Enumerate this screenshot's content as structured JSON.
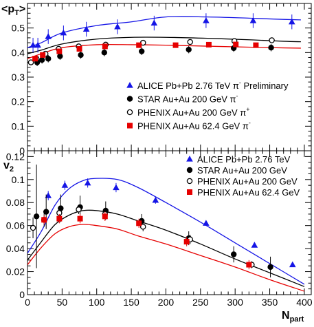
{
  "chart_data": [
    {
      "type": "scatter",
      "ylabel_main": "<p",
      "ylabel_sub": "T",
      "ylabel_tail": ">",
      "xlim": [
        0,
        410
      ],
      "ylim": [
        0,
        0.6
      ],
      "yticks": [
        0,
        0.1,
        0.2,
        0.3,
        0.4,
        0.5
      ],
      "ytick_labels": [
        "0",
        "0.1",
        "0.2",
        "0.3",
        "0.4",
        "0.5"
      ],
      "legend_position": "right",
      "series": [
        {
          "name_main": "ALICE Pb+Pb 2.76 TeV π",
          "name_sup": "-",
          "name_tail": " Preliminary",
          "color": "#1515e6",
          "marker": "triangle",
          "x": [
            8,
            15,
            30,
            52,
            85,
            130,
            183,
            258,
            326,
            382
          ],
          "y": [
            0.43,
            0.43,
            0.465,
            0.48,
            0.495,
            0.505,
            0.52,
            0.53,
            0.53,
            0.525
          ],
          "yerr": [
            0.03,
            0.03,
            0.03,
            0.03,
            0.03,
            0.03,
            0.03,
            0.03,
            0.03,
            0.03
          ]
        },
        {
          "name_main": "STAR Au+Au 200 GeV π",
          "name_sup": "-",
          "name_tail": "",
          "color": "#000000",
          "marker": "filled_circle",
          "x": [
            14,
            21,
            30,
            47,
            77,
            111,
            165,
            233,
            298,
            352
          ],
          "y": [
            0.36,
            0.37,
            0.375,
            0.385,
            0.39,
            0.4,
            0.405,
            0.412,
            0.418,
            0.42
          ],
          "yerr": [
            0.015,
            0.015,
            0.015,
            0.015,
            0.015,
            0.015,
            0.015,
            0.015,
            0.015,
            0.015
          ]
        },
        {
          "name_main": "PHENIX Au+Au 200 GeV π",
          "name_sup": "+",
          "name_tail": "",
          "color": "#000000",
          "marker": "open_circle",
          "x": [
            5,
            13,
            26,
            45,
            74,
            113,
            167,
            235,
            299,
            353
          ],
          "y": [
            0.36,
            0.375,
            0.395,
            0.415,
            0.425,
            0.432,
            0.44,
            0.443,
            0.447,
            0.45
          ],
          "yerr": [
            0.01,
            0.01,
            0.01,
            0.01,
            0.01,
            0.01,
            0.01,
            0.01,
            0.01,
            0.01
          ]
        },
        {
          "name_main": "PHENIX Au+Au 62.4 GeV π",
          "name_sup": "-",
          "name_tail": "",
          "color": "#e60000",
          "marker": "filled_square",
          "x": [
            11,
            22,
            46,
            75,
            112,
            161,
            214,
            262,
            301,
            330
          ],
          "y": [
            0.375,
            0.39,
            0.405,
            0.415,
            0.425,
            0.43,
            0.43,
            0.432,
            0.433,
            0.43
          ],
          "yerr": [
            0.01,
            0.01,
            0.01,
            0.01,
            0.01,
            0.01,
            0.01,
            0.01,
            0.01,
            0.01
          ]
        }
      ],
      "curves": [
        {
          "color": "#1515e6",
          "x": [
            0,
            20,
            50,
            100,
            150,
            200,
            260,
            320,
            370,
            395
          ],
          "y": [
            0.42,
            0.44,
            0.48,
            0.51,
            0.525,
            0.545,
            0.545,
            0.54,
            0.535,
            0.533
          ]
        },
        {
          "color": "#000000",
          "x": [
            0,
            20,
            50,
            100,
            150,
            200,
            260,
            320,
            370,
            395
          ],
          "y": [
            0.395,
            0.41,
            0.435,
            0.455,
            0.462,
            0.462,
            0.458,
            0.452,
            0.446,
            0.444
          ]
        },
        {
          "color": "#e60000",
          "x": [
            0,
            20,
            50,
            100,
            150,
            200,
            260,
            320,
            370,
            395
          ],
          "y": [
            0.375,
            0.395,
            0.42,
            0.432,
            0.432,
            0.43,
            0.426,
            0.422,
            0.419,
            0.418
          ]
        }
      ]
    },
    {
      "type": "scatter",
      "ylabel_main": "v",
      "ylabel_sub": "2",
      "xlabel_main": "N",
      "xlabel_sub": "part",
      "xlim": [
        0,
        410
      ],
      "ylim": [
        0,
        0.125
      ],
      "xticks": [
        0,
        50,
        100,
        150,
        200,
        250,
        300,
        350,
        400
      ],
      "xtick_labels": [
        "0",
        "50",
        "100",
        "150",
        "200",
        "250",
        "300",
        "350",
        "400"
      ],
      "yticks": [
        0,
        0.02,
        0.04,
        0.06,
        0.08,
        0.1,
        0.12
      ],
      "ytick_labels": [
        "0",
        "0.02",
        "0.04",
        "0.06",
        "0.08",
        "0.1",
        "0.12"
      ],
      "legend_position": "top-right",
      "series": [
        {
          "name": "ALICE Pb+Pb 2.76 TeV",
          "color": "#1515e6",
          "marker": "triangle",
          "x": [
            30,
            54,
            87,
            128,
            185,
            258,
            328,
            383
          ],
          "y": [
            0.086,
            0.095,
            0.097,
            0.093,
            0.082,
            0.062,
            0.043,
            0.026
          ],
          "yerr": [
            0.004,
            0.004,
            0.004,
            0.004,
            0.003,
            0.002,
            0.002,
            0.002
          ]
        },
        {
          "name": "STAR Au+Au 200 GeV",
          "color": "#000000",
          "marker": "filled_circle",
          "x": [
            13,
            27,
            48,
            76,
            113,
            165,
            233,
            298,
            351
          ],
          "y": [
            0.068,
            0.072,
            0.075,
            0.076,
            0.073,
            0.064,
            0.049,
            0.035,
            0.024
          ],
          "yerr": [
            0.045,
            0.015,
            0.012,
            0.01,
            0.008,
            0.006,
            0.006,
            0.007,
            0.009
          ]
        },
        {
          "name": "PHENIX Au+Au 200 GeV",
          "color": "#000000",
          "marker": "open_circle",
          "x": [
            8,
            24,
            46,
            74,
            112,
            167,
            235,
            324
          ],
          "y": [
            0.058,
            0.065,
            0.071,
            0.074,
            0.07,
            0.059,
            0.048,
            0.026
          ],
          "yerr": [
            0.009,
            0.006,
            0.005,
            0.004,
            0.004,
            0.004,
            0.004,
            0.003
          ]
        },
        {
          "name": "PHENIX Au+Au 62.4 GeV",
          "color": "#e60000",
          "marker": "filled_square",
          "x": [
            24,
            46,
            76,
            112,
            161,
            230,
            320
          ],
          "y": [
            0.065,
            0.066,
            0.066,
            0.068,
            0.062,
            0.046,
            0.026
          ],
          "yerr": [
            0.004,
            0.004,
            0.004,
            0.004,
            0.004,
            0.004,
            0.004
          ]
        }
      ],
      "curves": [
        {
          "color": "#1515e6",
          "x": [
            0,
            20,
            40,
            60,
            80,
            100,
            130,
            160,
            200,
            250,
            300,
            350,
            400
          ],
          "y": [
            0.036,
            0.055,
            0.078,
            0.092,
            0.099,
            0.101,
            0.1,
            0.093,
            0.08,
            0.063,
            0.045,
            0.027,
            0.009
          ]
        },
        {
          "color": "#000000",
          "x": [
            0,
            20,
            40,
            60,
            80,
            100,
            130,
            160,
            200,
            250,
            300,
            350,
            400
          ],
          "y": [
            0.03,
            0.046,
            0.061,
            0.069,
            0.073,
            0.073,
            0.07,
            0.064,
            0.056,
            0.044,
            0.031,
            0.019,
            0.007
          ]
        },
        {
          "color": "#e60000",
          "x": [
            0,
            20,
            40,
            60,
            80,
            100,
            130,
            160,
            200,
            250,
            300,
            350,
            400
          ],
          "y": [
            0.026,
            0.041,
            0.053,
            0.059,
            0.061,
            0.06,
            0.057,
            0.051,
            0.044,
            0.034,
            0.024,
            0.013,
            0.003
          ]
        }
      ]
    }
  ]
}
